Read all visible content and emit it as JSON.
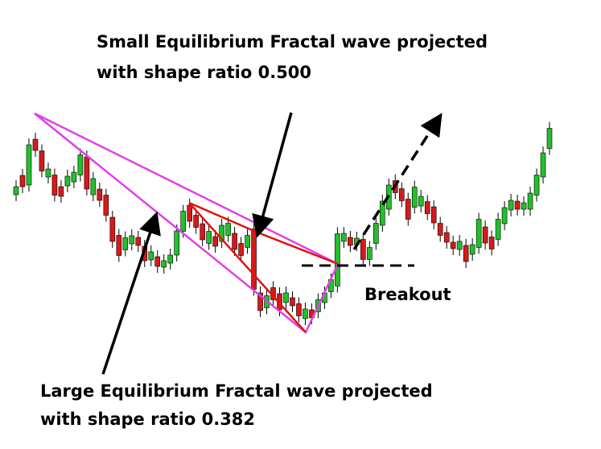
{
  "annotations": {
    "small": {
      "lines": [
        "Small Equilibrium Fractal wave projected",
        "with shape ratio 0.500"
      ]
    },
    "breakout": "Breakout",
    "large": {
      "lines": [
        "Large Equilibrium Fractal wave projected",
        "with shape ratio 0.382"
      ]
    }
  }
}
